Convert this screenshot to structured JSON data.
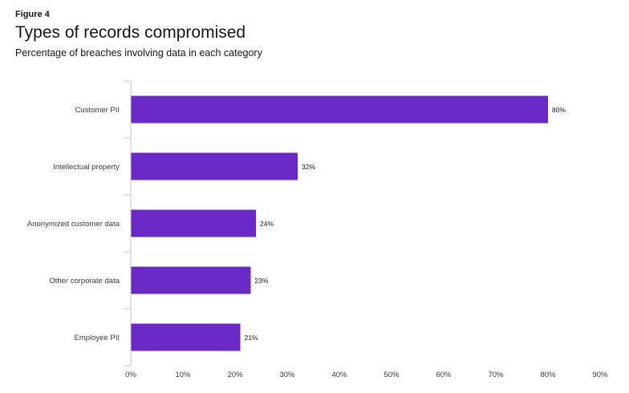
{
  "header": {
    "figure_label": "Figure 4",
    "title": "Types of records compromised",
    "subtitle": "Percentage of breaches involving data in each category"
  },
  "colors": {
    "bar": "#6929c4",
    "axis": "#c6c6c6",
    "text": "#161616"
  },
  "chart_data": {
    "type": "bar",
    "orientation": "horizontal",
    "title": "Types of records compromised",
    "subtitle": "Percentage of breaches involving data in each category",
    "categories": [
      "Customer PII",
      "Intellectual property",
      "Anonymized customer data",
      "Other corporate data",
      "Employee PII"
    ],
    "values": [
      80,
      32,
      24,
      23,
      21
    ],
    "value_labels": [
      "80%",
      "32%",
      "24%",
      "23%",
      "21%"
    ],
    "xlim": [
      0,
      90
    ],
    "x_ticks": [
      0,
      10,
      20,
      30,
      40,
      50,
      60,
      70,
      80,
      90
    ],
    "x_tick_labels": [
      "0%",
      "10%",
      "20%",
      "30%",
      "40%",
      "50%",
      "60%",
      "70%",
      "80%",
      "90%"
    ],
    "xlabel": "",
    "ylabel": "",
    "grid": false,
    "legend": "none"
  }
}
